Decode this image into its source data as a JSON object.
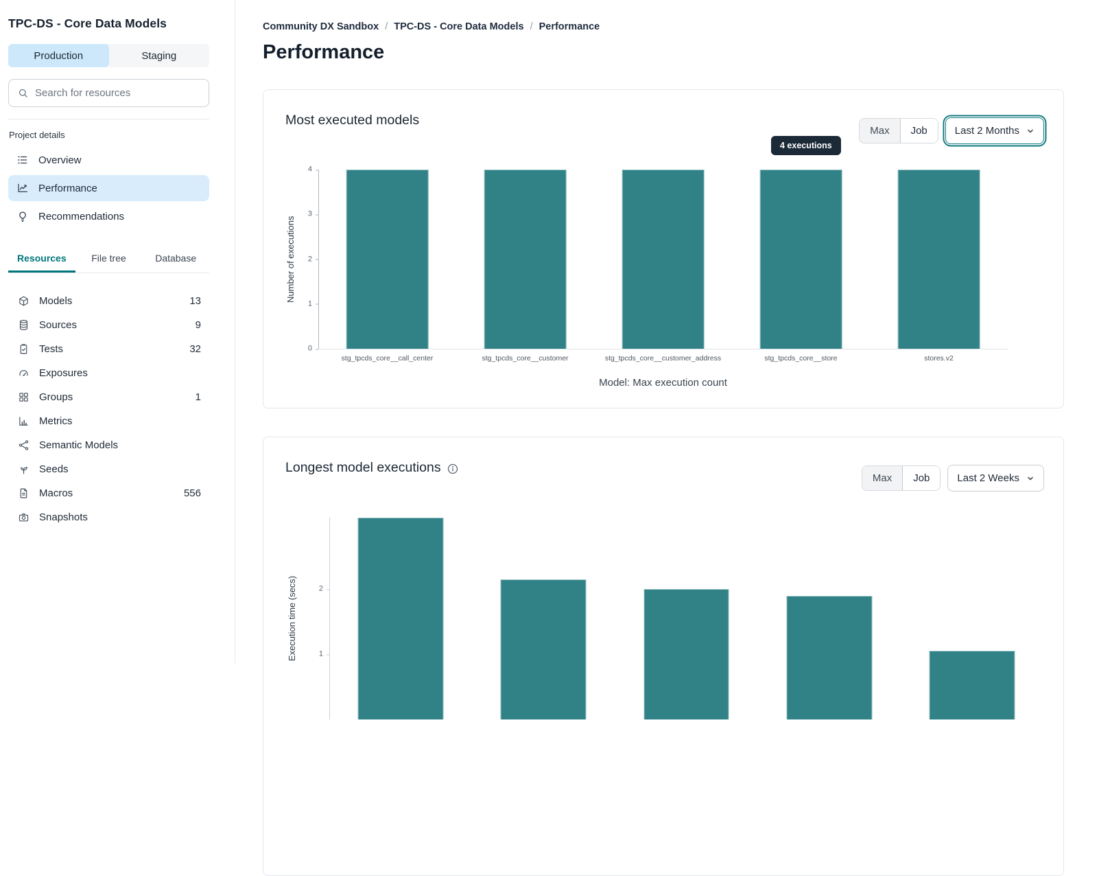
{
  "sidebar": {
    "title": "TPC-DS - Core Data Models",
    "env_tabs": [
      {
        "label": "Production",
        "active": true
      },
      {
        "label": "Staging",
        "active": false
      }
    ],
    "search_placeholder": "Search for resources",
    "section_label": "Project details",
    "nav": [
      {
        "label": "Overview",
        "icon": "list-icon",
        "active": false
      },
      {
        "label": "Performance",
        "icon": "trend-chart-icon",
        "active": true
      },
      {
        "label": "Recommendations",
        "icon": "lightbulb-icon",
        "active": false
      }
    ],
    "resource_tabs": [
      {
        "label": "Resources",
        "active": true
      },
      {
        "label": "File tree",
        "active": false
      },
      {
        "label": "Database",
        "active": false
      }
    ],
    "resources": [
      {
        "label": "Models",
        "count": "13",
        "icon": "cube-icon"
      },
      {
        "label": "Sources",
        "count": "9",
        "icon": "database-icon"
      },
      {
        "label": "Tests",
        "count": "32",
        "icon": "clipboard-check-icon"
      },
      {
        "label": "Exposures",
        "count": "",
        "icon": "gauge-icon"
      },
      {
        "label": "Groups",
        "count": "1",
        "icon": "grid-icon"
      },
      {
        "label": "Metrics",
        "count": "",
        "icon": "bar-chart-icon"
      },
      {
        "label": "Semantic Models",
        "count": "",
        "icon": "nodes-icon"
      },
      {
        "label": "Seeds",
        "count": "",
        "icon": "seedling-icon"
      },
      {
        "label": "Macros",
        "count": "556",
        "icon": "file-icon"
      },
      {
        "label": "Snapshots",
        "count": "",
        "icon": "camera-icon"
      }
    ]
  },
  "breadcrumb": {
    "separator": "/",
    "items": [
      "Community DX Sandbox",
      "TPC-DS - Core Data Models",
      "Performance"
    ]
  },
  "page_title": "Performance",
  "colors": {
    "bar_teal": "#318286",
    "accent_teal": "#00767b",
    "active_item_blue": "#d8ecfb",
    "env_active_blue": "#cde8fa",
    "tooltip_bg": "#1c2936",
    "focus_ring_teal": "#127a80"
  },
  "chart_data": [
    {
      "type": "bar",
      "title": "Most executed models",
      "categories": [
        "stg_tpcds_core__call_center",
        "stg_tpcds_core__customer",
        "stg_tpcds_core__customer_address",
        "stg_tpcds_core__store",
        "stores.v2"
      ],
      "values": [
        4,
        4,
        4,
        4,
        4
      ],
      "xlabel": "Model: Max execution count",
      "ylabel": "Number of executions",
      "ylim": [
        0,
        4
      ],
      "ytick_values": [
        4,
        3,
        2,
        1,
        0
      ],
      "ytick_labels": [
        "4",
        "3",
        "2",
        "1",
        "0"
      ],
      "bar_color": "#318286",
      "grid": false,
      "tooltip": {
        "text": "4 executions",
        "target_category": "stg_tpcds_core__store"
      },
      "controls": {
        "toggle_options": [
          "Max",
          "Job"
        ],
        "toggle_selected": "Max",
        "range_selected": "Last 2 Months",
        "range_focused": true
      }
    },
    {
      "type": "bar",
      "title": "Longest model executions",
      "values": [
        3.1,
        2.15,
        2.0,
        1.9,
        1.05
      ],
      "ylabel": "Execution time (secs)",
      "ylim": [
        0,
        3.1
      ],
      "ytick_values": [
        2,
        1
      ],
      "ytick_labels": [
        "2",
        "1"
      ],
      "bar_color": "#318286",
      "grid": false,
      "controls": {
        "toggle_options": [
          "Max",
          "Job"
        ],
        "toggle_selected": "Max",
        "range_selected": "Last 2 Weeks",
        "range_focused": false
      }
    }
  ]
}
